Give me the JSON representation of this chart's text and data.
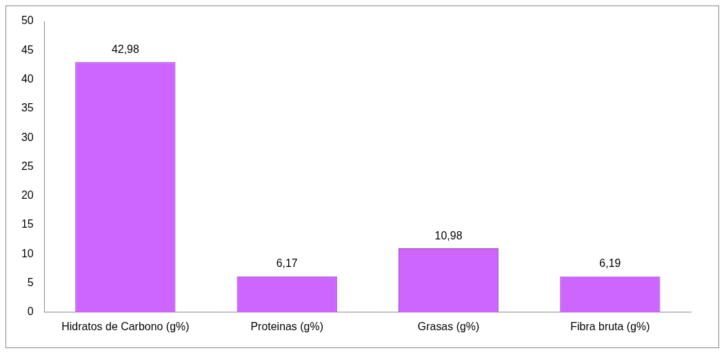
{
  "chart_data": {
    "type": "bar",
    "categories": [
      "Hidratos de Carbono (g%)",
      "Proteinas (g%)",
      "Grasas (g%)",
      "Fibra bruta (g%)"
    ],
    "values": [
      42.98,
      6.17,
      10.98,
      6.19
    ],
    "value_labels": [
      "42,98",
      "6,17",
      "10,98",
      "6,19"
    ],
    "color": "#cc66ff",
    "ylim": [
      0,
      50
    ],
    "yticks": [
      0,
      5,
      10,
      15,
      20,
      25,
      30,
      35,
      40,
      45,
      50
    ],
    "grid": false,
    "legend": false
  }
}
